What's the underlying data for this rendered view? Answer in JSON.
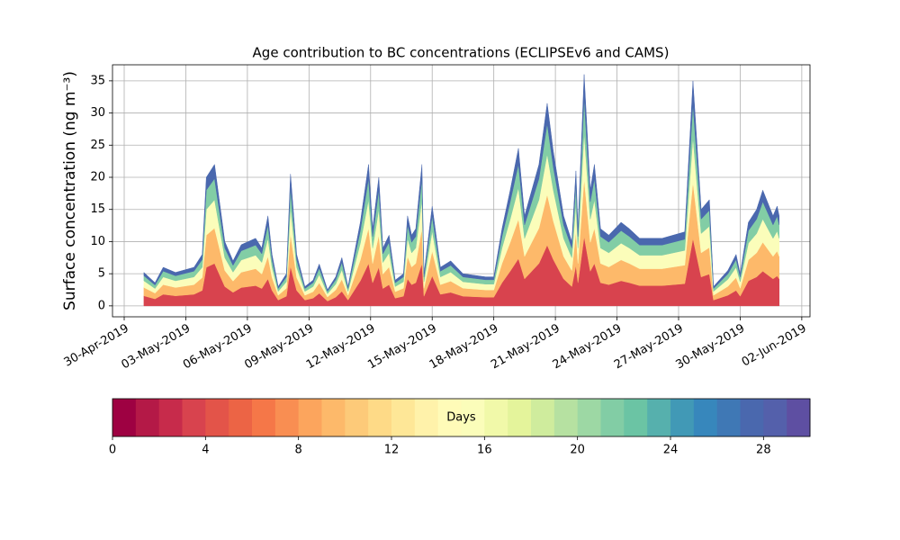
{
  "chart_data": {
    "type": "stackedarea",
    "title": "Age contribution to BC concentrations (ECLIPSEv6 and CAMS)",
    "ylabel": "Surface concentration (ng m⁻³)",
    "x": [
      0.96,
      1.5,
      1.9,
      2.5,
      3.4,
      3.8,
      4.0,
      4.4,
      4.9,
      5.3,
      5.7,
      6.4,
      6.7,
      7.0,
      7.2,
      7.5,
      7.9,
      8.1,
      8.4,
      8.8,
      9.2,
      9.5,
      9.9,
      10.3,
      10.6,
      10.9,
      11.5,
      11.9,
      12.1,
      12.4,
      12.6,
      12.9,
      13.2,
      13.6,
      13.8,
      14.0,
      14.2,
      14.5,
      14.6,
      15.0,
      15.4,
      15.9,
      16.5,
      17.6,
      18.0,
      18.4,
      18.8,
      19.2,
      19.5,
      20.2,
      20.6,
      20.9,
      21.4,
      21.8,
      22.0,
      22.1,
      22.4,
      22.7,
      22.9,
      23.2,
      23.6,
      24.2,
      24.6,
      25.1,
      26.2,
      27.3,
      27.7,
      28.1,
      28.5,
      28.7,
      29.4,
      29.8,
      30.0,
      30.4,
      30.8,
      31.1,
      31.6,
      31.8,
      31.9
    ],
    "series": [
      {
        "color": "#d8434e",
        "values": [
          1.56,
          1.08,
          1.8,
          1.56,
          1.8,
          2.4,
          6,
          6.6,
          3,
          2.1,
          2.85,
          3.15,
          2.7,
          4.2,
          2.4,
          0.9,
          1.5,
          6.15,
          2.4,
          0.9,
          1.2,
          1.95,
          0.75,
          1.35,
          2.25,
          0.9,
          3.9,
          6.6,
          3.6,
          6,
          2.7,
          3.3,
          1.2,
          1.5,
          4.2,
          3.3,
          3.6,
          6.6,
          1.5,
          4.65,
          1.8,
          2.1,
          1.5,
          1.35,
          1.35,
          3.6,
          5.4,
          7.35,
          4.2,
          6.6,
          9.45,
          7.2,
          4.2,
          3,
          6.3,
          3.6,
          10.8,
          5.4,
          6.6,
          3.6,
          3.3,
          3.9,
          3.6,
          3.15,
          3.15,
          3.45,
          10.5,
          4.5,
          4.95,
          0.9,
          1.65,
          2.4,
          1.5,
          3.9,
          4.5,
          5.4,
          4.2,
          4.65,
          4.2
        ]
      },
      {
        "color": "#fdb96a",
        "values": [
          1.3,
          0.9,
          1.5,
          1.3,
          1.5,
          2,
          5,
          5.5,
          2.5,
          1.75,
          2.38,
          2.63,
          2.25,
          3.5,
          2,
          0.75,
          1.25,
          5.13,
          2,
          0.75,
          1,
          1.63,
          0.63,
          1.13,
          1.88,
          0.75,
          3.25,
          5.5,
          3,
          5,
          2.25,
          2.75,
          1,
          1.25,
          3.5,
          2.75,
          3,
          5.5,
          1.25,
          3.88,
          1.5,
          1.75,
          1.25,
          1.13,
          1.13,
          3,
          4.5,
          6.13,
          3.5,
          5.5,
          7.88,
          6,
          3.5,
          2.5,
          5.25,
          3,
          9,
          4.5,
          5.5,
          3,
          2.75,
          3.25,
          3,
          2.63,
          2.63,
          2.88,
          8.75,
          3.75,
          4.13,
          0.75,
          1.38,
          2,
          1.25,
          3.25,
          3.75,
          4.5,
          3.5,
          3.88,
          3.5
        ]
      },
      {
        "color": "#fbfdba",
        "values": [
          1.04,
          0.72,
          1.2,
          1.04,
          1.2,
          1.6,
          4,
          4.4,
          2,
          1.4,
          1.9,
          2.1,
          1.8,
          2.8,
          1.6,
          0.6,
          1,
          4.1,
          1.6,
          0.6,
          0.8,
          1.3,
          0.5,
          0.9,
          1.5,
          0.6,
          2.6,
          4.4,
          2.4,
          4,
          1.8,
          2.2,
          0.8,
          1,
          2.8,
          2.2,
          2.4,
          4.4,
          1,
          3.1,
          1.2,
          1.4,
          1,
          0.9,
          0.9,
          2.4,
          3.6,
          4.9,
          2.8,
          4.4,
          6.3,
          4.8,
          2.8,
          2,
          4.2,
          2.4,
          7.2,
          3.6,
          4.4,
          2.4,
          2.2,
          2.6,
          2.4,
          2.1,
          2.1,
          2.3,
          7,
          3,
          3.3,
          0.6,
          1.1,
          1.6,
          1,
          2.6,
          3,
          3.6,
          2.8,
          3.1,
          2.8
        ]
      },
      {
        "color": "#82cda5",
        "values": [
          0.78,
          0.54,
          0.9,
          0.78,
          0.9,
          1.2,
          3,
          3.3,
          1.5,
          1.05,
          1.43,
          1.58,
          1.35,
          2.1,
          1.2,
          0.45,
          0.75,
          3.08,
          1.2,
          0.45,
          0.6,
          0.98,
          0.38,
          0.68,
          1.13,
          0.45,
          1.95,
          3.3,
          1.8,
          3,
          1.35,
          1.65,
          0.6,
          0.75,
          2.1,
          1.65,
          1.8,
          3.3,
          0.75,
          2.33,
          0.9,
          1.05,
          0.75,
          0.68,
          0.68,
          1.8,
          2.7,
          3.68,
          2.1,
          3.3,
          4.73,
          3.6,
          2.1,
          1.5,
          3.15,
          1.8,
          5.4,
          2.7,
          3.3,
          1.8,
          1.65,
          1.95,
          1.8,
          1.58,
          1.58,
          1.73,
          5.25,
          2.25,
          2.48,
          0.45,
          0.83,
          1.2,
          0.75,
          1.95,
          2.25,
          2.7,
          2.1,
          2.33,
          2.1
        ]
      },
      {
        "color": "#4a68ae",
        "values": [
          0.52,
          0.36,
          0.6,
          0.52,
          0.6,
          0.8,
          2,
          2.2,
          1,
          0.7,
          0.95,
          1.05,
          0.9,
          1.4,
          0.8,
          0.3,
          0.5,
          2.05,
          0.8,
          0.3,
          0.4,
          0.65,
          0.25,
          0.45,
          0.75,
          0.3,
          1.3,
          2.2,
          1.2,
          2,
          0.9,
          1.1,
          0.4,
          0.5,
          1.4,
          1.1,
          1.2,
          2.2,
          0.5,
          1.55,
          0.6,
          0.7,
          0.5,
          0.45,
          0.45,
          1.2,
          1.8,
          2.45,
          1.4,
          2.2,
          3.15,
          2.4,
          1.4,
          1,
          2.1,
          1.2,
          3.6,
          1.8,
          2.2,
          1.2,
          1.1,
          1.3,
          1.2,
          1.05,
          1.05,
          1.15,
          3.5,
          1.5,
          1.65,
          0.3,
          0.55,
          0.8,
          0.5,
          1.3,
          1.5,
          1.8,
          1.4,
          1.55,
          1.4
        ]
      }
    ],
    "xlim": [
      -0.57,
      33.4
    ],
    "xticks": [
      {
        "value": 0,
        "label": "30-Apr-2019"
      },
      {
        "value": 3,
        "label": "03-May-2019"
      },
      {
        "value": 6,
        "label": "06-May-2019"
      },
      {
        "value": 9,
        "label": "09-May-2019"
      },
      {
        "value": 12,
        "label": "12-May-2019"
      },
      {
        "value": 15,
        "label": "15-May-2019"
      },
      {
        "value": 18,
        "label": "18-May-2019"
      },
      {
        "value": 21,
        "label": "21-May-2019"
      },
      {
        "value": 24,
        "label": "24-May-2019"
      },
      {
        "value": 27,
        "label": "27-May-2019"
      },
      {
        "value": 30,
        "label": "30-May-2019"
      },
      {
        "value": 33,
        "label": "02-Jun-2019"
      }
    ],
    "ylim": [
      -1.7,
      37.5
    ],
    "yticks": [
      0,
      5,
      10,
      15,
      20,
      25,
      30,
      35
    ],
    "grid": true,
    "colorbar": {
      "label": "Days",
      "range": [
        0,
        30
      ],
      "ticks": [
        0,
        4,
        8,
        12,
        16,
        20,
        24,
        28
      ],
      "colors": [
        "#9e0142",
        "#b41947",
        "#c72b4b",
        "#d8434e",
        "#e35449",
        "#ec6445",
        "#f57748",
        "#f98e52",
        "#fca55d",
        "#fdb96a",
        "#fdca79",
        "#feda87",
        "#fee797",
        "#fff2aa",
        "#fffbb8",
        "#fbfdba",
        "#f1f9a9",
        "#e4f49b",
        "#cfec9d",
        "#b6e1a1",
        "#9dd8a4",
        "#82cda5",
        "#6bc4a4",
        "#56b0ad",
        "#4199b6",
        "#3787bc",
        "#3f78b5",
        "#4a68ae",
        "#5460ab",
        "#5e4fa2"
      ]
    }
  }
}
